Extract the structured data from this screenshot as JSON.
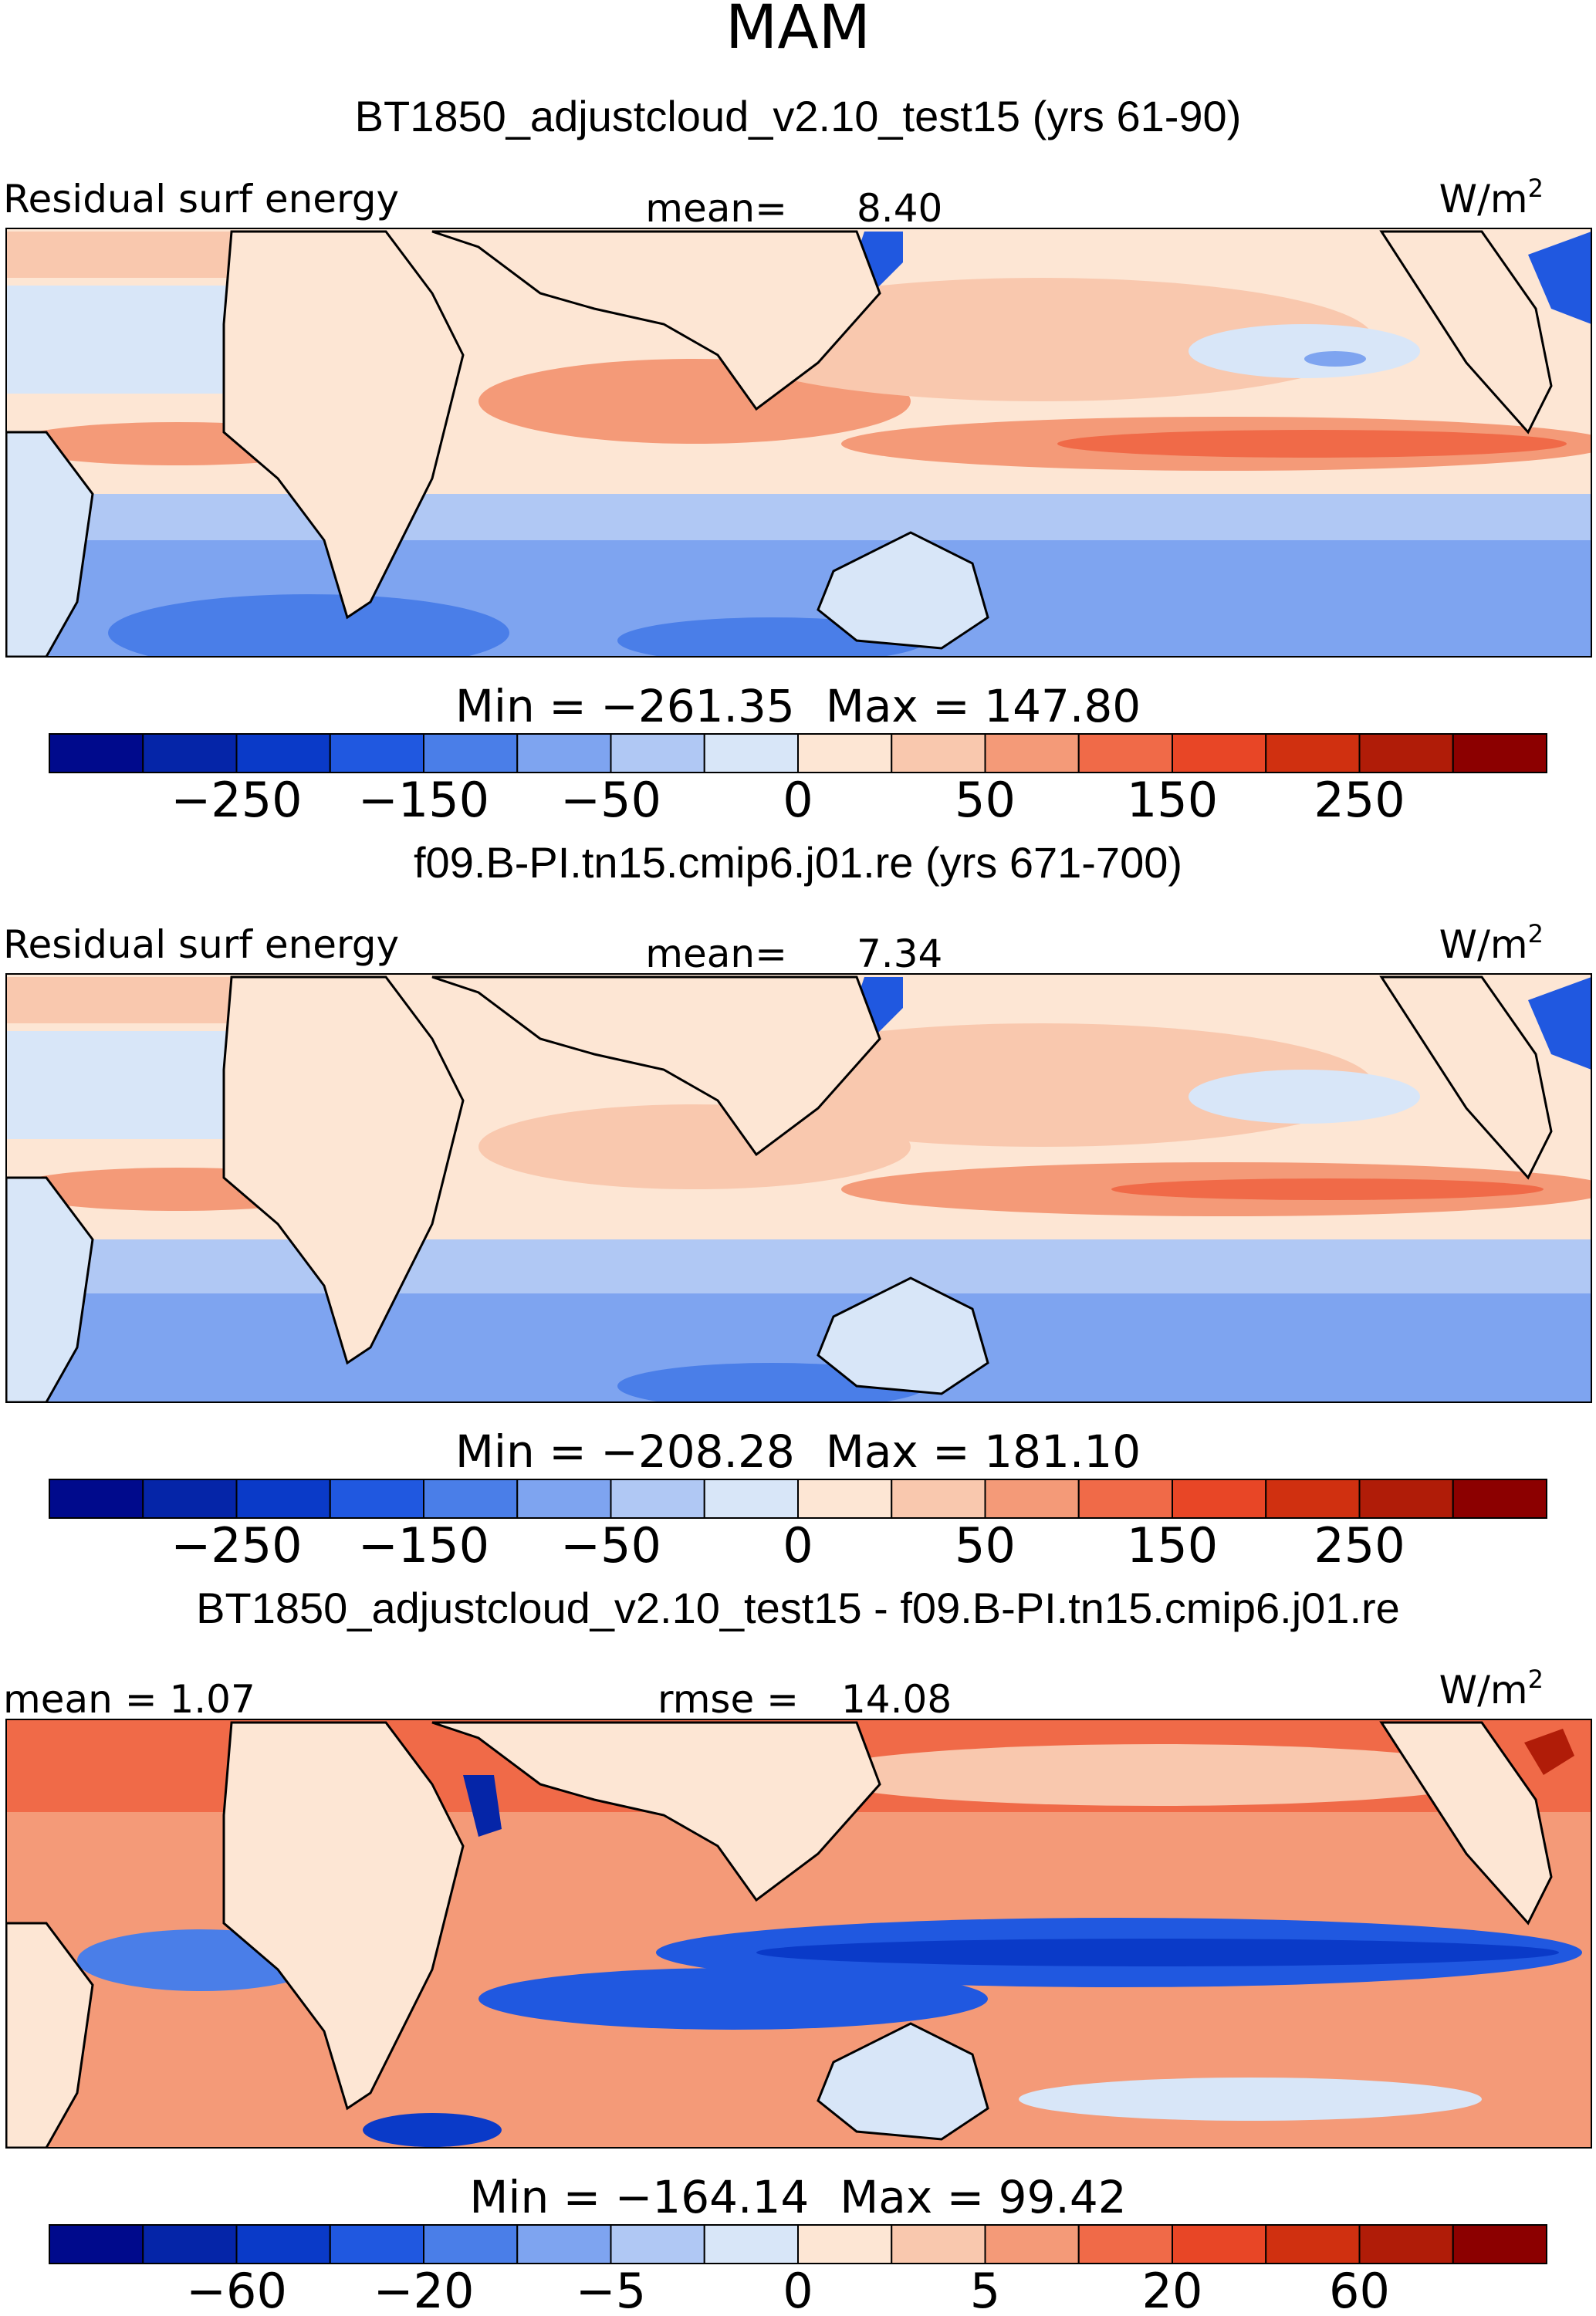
{
  "figure": {
    "season": "MAM",
    "unit_base": "W/m",
    "unit_exp": "2"
  },
  "chart_data": [
    {
      "type": "heatmap",
      "title": "BT1850_adjustcloud_v2.10_test15 (yrs 61-90)",
      "left_label": "Residual surf energy",
      "stat_label": "mean=",
      "stat_value": "8.40",
      "min_text": "Min = −261.35",
      "max_text": "Max = 147.80",
      "colorbar": {
        "tick_labels": [
          "−250",
          "−150",
          "−50",
          "0",
          "50",
          "150",
          "250"
        ],
        "colors": [
          "#000a8c",
          "#0525a8",
          "#0a3ac8",
          "#2058e0",
          "#4a7ee8",
          "#7ea4f0",
          "#b0c8f4",
          "#d8e6f8",
          "#fde6d4",
          "#f9c8ae",
          "#f49a78",
          "#f06a48",
          "#e84626",
          "#d03010",
          "#b01c08",
          "#8c0000"
        ]
      }
    },
    {
      "type": "heatmap",
      "title": "f09.B-PI.tn15.cmip6.j01.re (yrs 671-700)",
      "left_label": "Residual surf energy",
      "stat_label": "mean=",
      "stat_value": "7.34",
      "min_text": "Min = −208.28",
      "max_text": "Max = 181.10",
      "colorbar": {
        "tick_labels": [
          "−250",
          "−150",
          "−50",
          "0",
          "50",
          "150",
          "250"
        ],
        "colors": [
          "#000a8c",
          "#0525a8",
          "#0a3ac8",
          "#2058e0",
          "#4a7ee8",
          "#7ea4f0",
          "#b0c8f4",
          "#d8e6f8",
          "#fde6d4",
          "#f9c8ae",
          "#f49a78",
          "#f06a48",
          "#e84626",
          "#d03010",
          "#b01c08",
          "#8c0000"
        ]
      }
    },
    {
      "type": "heatmap",
      "title": "BT1850_adjustcloud_v2.10_test15 - f09.B-PI.tn15.cmip6.j01.re",
      "left_label": "mean = 1.07",
      "stat_label": "rmse =",
      "stat_value": "14.08",
      "min_text": "Min = −164.14",
      "max_text": "Max = 99.42",
      "colorbar": {
        "tick_labels": [
          "−60",
          "−20",
          "−5",
          "0",
          "5",
          "20",
          "60"
        ],
        "colors": [
          "#000a8c",
          "#0525a8",
          "#0a3ac8",
          "#2058e0",
          "#4a7ee8",
          "#7ea4f0",
          "#b0c8f4",
          "#d8e6f8",
          "#fde6d4",
          "#f9c8ae",
          "#f49a78",
          "#f06a48",
          "#e84626",
          "#d03010",
          "#b01c08",
          "#8c0000"
        ]
      }
    }
  ]
}
